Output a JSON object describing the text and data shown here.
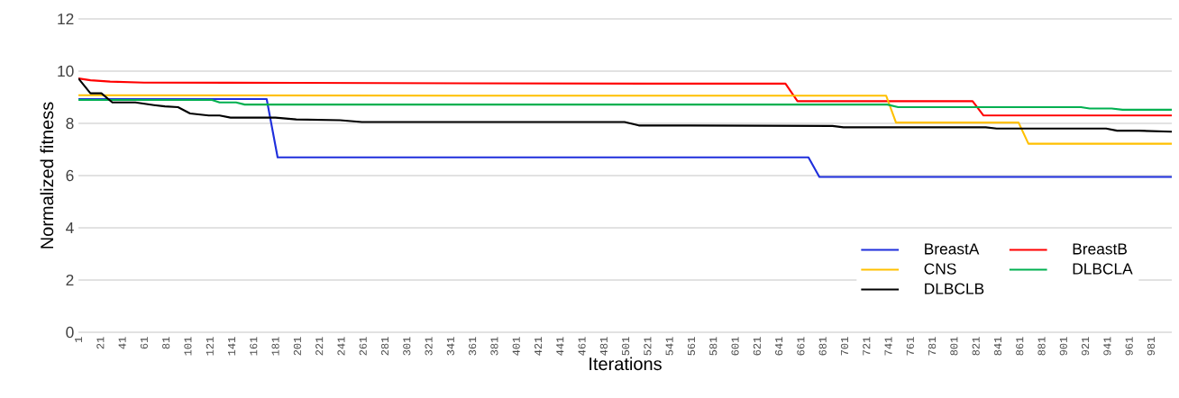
{
  "chart_data": {
    "type": "line",
    "xlabel": "Iterations",
    "ylabel": "Normalized fitness",
    "xlim": [
      1,
      1000
    ],
    "xticks": [
      1,
      21,
      41,
      61,
      81,
      101,
      121,
      141,
      161,
      181,
      201,
      221,
      241,
      261,
      281,
      301,
      321,
      341,
      361,
      381,
      401,
      421,
      441,
      461,
      481,
      501,
      521,
      541,
      561,
      581,
      601,
      621,
      641,
      661,
      681,
      701,
      721,
      741,
      761,
      781,
      801,
      821,
      841,
      861,
      881,
      901,
      921,
      941,
      961,
      981
    ],
    "ylim": [
      0,
      12
    ],
    "yticks": [
      0,
      2,
      4,
      6,
      8,
      10,
      12
    ],
    "grid": "y",
    "legend": "bottom right",
    "series": [
      {
        "name": "BreastA",
        "color": "#1f2fdc",
        "x": [
          1,
          173,
          183,
          668,
          678,
          1000
        ],
        "values": [
          8.93,
          8.93,
          6.7,
          6.7,
          5.95,
          5.95
        ]
      },
      {
        "name": "BreastB",
        "color": "#ff0000",
        "x": [
          1,
          12,
          30,
          61,
          200,
          520,
          647,
          658,
          818,
          828,
          1000
        ],
        "values": [
          9.72,
          9.65,
          9.6,
          9.56,
          9.55,
          9.52,
          9.52,
          8.85,
          8.85,
          8.3,
          8.3
        ]
      },
      {
        "name": "CNS",
        "color": "#ffc000",
        "x": [
          1,
          380,
          739,
          748,
          860,
          869,
          1000
        ],
        "values": [
          9.08,
          9.06,
          9.06,
          8.03,
          8.03,
          7.22,
          7.22
        ]
      },
      {
        "name": "DLBCLA",
        "color": "#00b050",
        "x": [
          1,
          123,
          130,
          145,
          153,
          740,
          750,
          917,
          925,
          945,
          955,
          1000
        ],
        "values": [
          8.9,
          8.9,
          8.8,
          8.8,
          8.72,
          8.72,
          8.62,
          8.62,
          8.57,
          8.57,
          8.52,
          8.52
        ]
      },
      {
        "name": "DLBCLB",
        "color": "#000000",
        "x": [
          1,
          12,
          22,
          32,
          53,
          70,
          80,
          92,
          103,
          120,
          130,
          140,
          181,
          200,
          240,
          260,
          500,
          513,
          560,
          690,
          700,
          830,
          840,
          940,
          950,
          970,
          1000
        ],
        "values": [
          9.72,
          9.15,
          9.15,
          8.8,
          8.8,
          8.7,
          8.65,
          8.62,
          8.38,
          8.3,
          8.3,
          8.22,
          8.22,
          8.15,
          8.12,
          8.05,
          8.05,
          7.92,
          7.92,
          7.9,
          7.85,
          7.85,
          7.8,
          7.8,
          7.72,
          7.72,
          7.68
        ]
      }
    ]
  }
}
